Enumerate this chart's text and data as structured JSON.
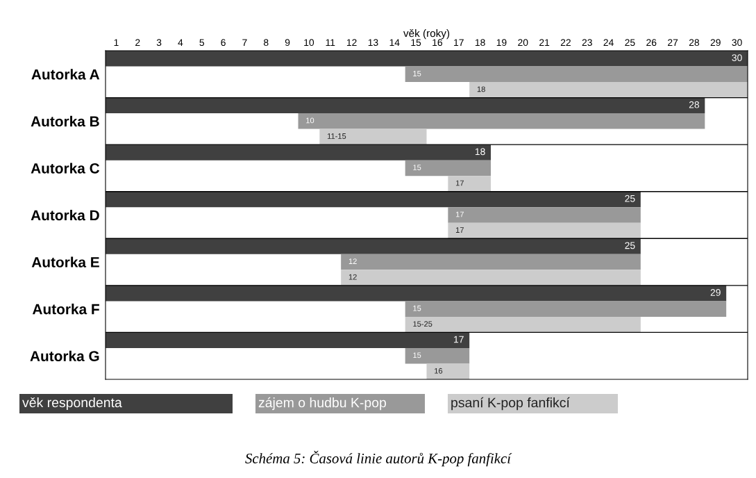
{
  "chart_data": {
    "type": "bar",
    "orientation": "horizontal",
    "xlabel": "věk (roky)",
    "categories": [
      "Autorka A",
      "Autorka B",
      "Autorka C",
      "Autorka D",
      "Autorka E",
      "Autorka F",
      "Autorka G"
    ],
    "series": [
      {
        "name": "věk respondenta",
        "color": "#404040",
        "base": [
          0.5,
          0.5,
          0.5,
          0.5,
          0.5,
          0.5,
          0.5
        ],
        "values": [
          30,
          28,
          18,
          25,
          25,
          29,
          17
        ],
        "value_labels": [
          "30",
          "28",
          "18",
          "25",
          "25",
          "29",
          "17"
        ]
      },
      {
        "name": "zájem o hudbu K-pop",
        "color": "#999999",
        "base": [
          14.5,
          9.5,
          14.5,
          16.5,
          11.5,
          14.5,
          14.5
        ],
        "values": [
          16,
          19,
          4,
          9,
          14,
          15,
          3
        ]
      },
      {
        "name": "psaní K-pop fanfikcí",
        "color": "#cccccc",
        "base": [
          17.5,
          10.5,
          16.5,
          16.5,
          11.5,
          14.5,
          15.5
        ],
        "values": [
          13,
          5,
          2,
          9,
          14,
          11,
          2
        ]
      }
    ],
    "xlim": [
      0.5,
      30.5
    ],
    "xticks": [
      1,
      2,
      3,
      4,
      5,
      6,
      7,
      8,
      9,
      10,
      11,
      12,
      13,
      14,
      15,
      16,
      17,
      18,
      19,
      20,
      21,
      22,
      23,
      24,
      25,
      26,
      27,
      28,
      29,
      30
    ],
    "grid": "y",
    "legend": "bottom",
    "annotations": [
      "15",
      "18",
      "10",
      "11-15",
      "15",
      "17",
      "17",
      "17",
      "12",
      "12",
      "15",
      "15-25",
      "15",
      "16",
      "Schéma 5: Časová linie autorů K-pop fanfikcí"
    ]
  }
}
